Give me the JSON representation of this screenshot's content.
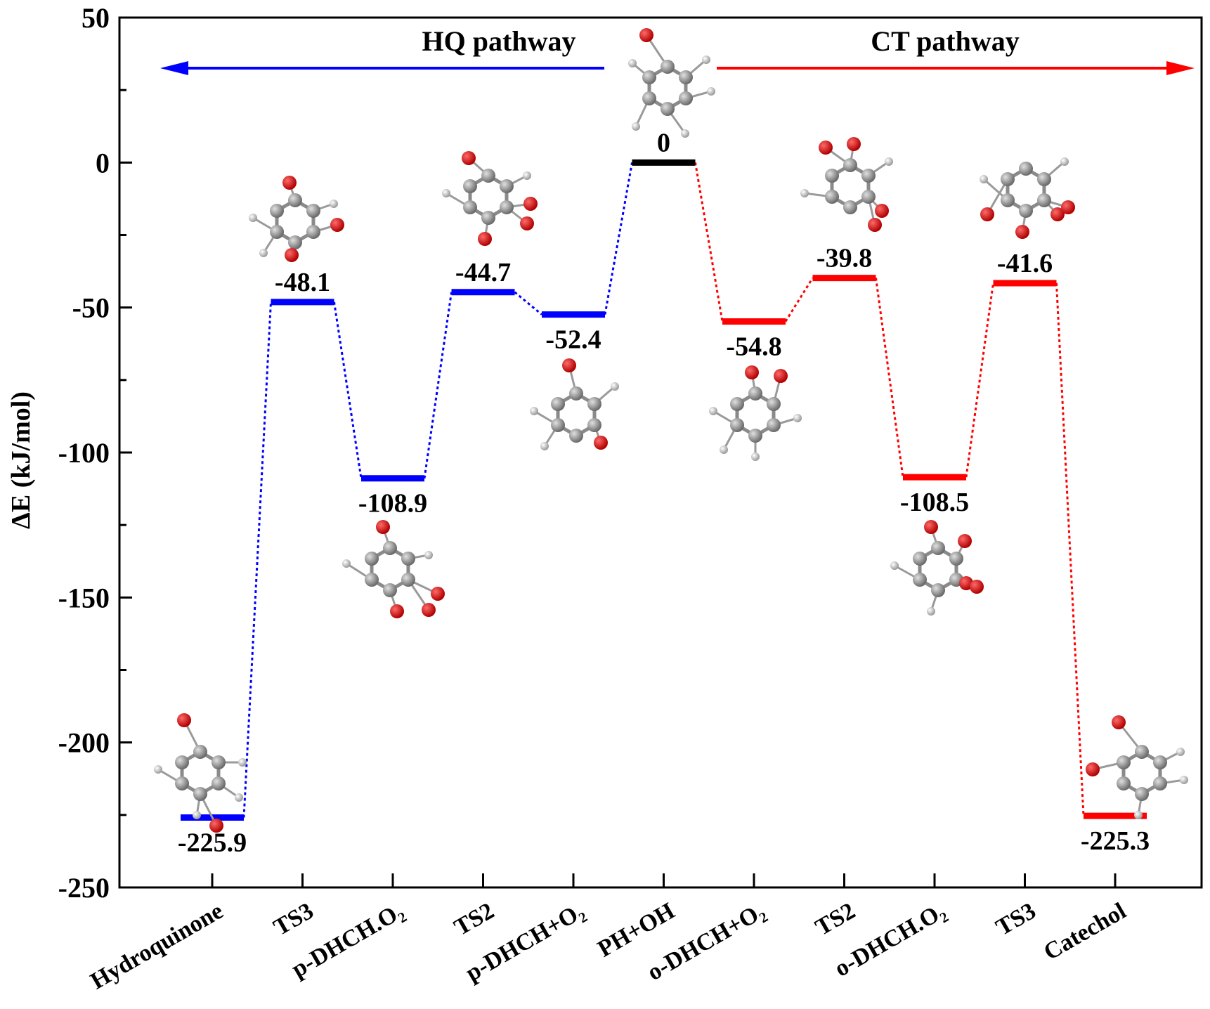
{
  "chart_data": {
    "type": "energy-profile",
    "ylabel": "ΔE (kJ/mol)",
    "ylim": [
      -250,
      50
    ],
    "yticks": [
      "50",
      "0",
      "-50",
      "-100",
      "-150",
      "-200",
      "-250"
    ],
    "grid": false,
    "categories": [
      "Hydroquinone",
      "TS3",
      "p-DHCH.O₂",
      "TS2",
      "p-DHCH+O₂",
      "PH+OH",
      "o-DHCH+O₂",
      "TS2",
      "o-DHCH.O₂",
      "TS3",
      "Catechol"
    ],
    "series": [
      {
        "name": "HQ pathway",
        "color": "#0000ff",
        "levels": [
          {
            "category_index": 0,
            "value": -225.9,
            "label": "-225.9"
          },
          {
            "category_index": 1,
            "value": -48.1,
            "label": "-48.1"
          },
          {
            "category_index": 2,
            "value": -108.9,
            "label": "-108.9"
          },
          {
            "category_index": 3,
            "value": -44.7,
            "label": "-44.7"
          },
          {
            "category_index": 4,
            "value": -52.4,
            "label": "-52.4"
          },
          {
            "category_index": 5,
            "value": 0,
            "label": "0"
          }
        ]
      },
      {
        "name": "CT pathway",
        "color": "#ff0000",
        "levels": [
          {
            "category_index": 5,
            "value": 0,
            "label": "0"
          },
          {
            "category_index": 6,
            "value": -54.8,
            "label": "-54.8"
          },
          {
            "category_index": 7,
            "value": -39.8,
            "label": "-39.8"
          },
          {
            "category_index": 8,
            "value": -108.5,
            "label": "-108.5"
          },
          {
            "category_index": 9,
            "value": -41.6,
            "label": "-41.6"
          },
          {
            "category_index": 10,
            "value": -225.3,
            "label": "-225.3"
          }
        ]
      }
    ],
    "reference": {
      "category_index": 5,
      "value": 0,
      "label": "0",
      "color": "#000000"
    },
    "annotations": {
      "hq_title": "HQ pathway",
      "ct_title": "CT pathway"
    },
    "colors": {
      "hq": "#0000ff",
      "ct": "#ff0000",
      "ref": "#000000",
      "oxygen": "#dd0000",
      "carbon": "#888888",
      "hydrogen": "#bbbbbb"
    }
  }
}
